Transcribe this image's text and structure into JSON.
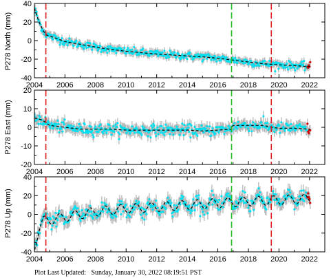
{
  "chart_data": [
    {
      "type": "scatter",
      "ylabel": "P278 North (mm)",
      "xlim": [
        2004,
        2023
      ],
      "ylim": [
        -40,
        40
      ],
      "xticks": [
        2004,
        2006,
        2008,
        2010,
        2012,
        2014,
        2016,
        2018,
        2020,
        2022
      ],
      "yticks": [
        -40,
        -20,
        0,
        20,
        40
      ],
      "events": [
        {
          "x": 2004.75,
          "color": "#e02020"
        },
        {
          "x": 2016.9,
          "color": "#22bb22"
        },
        {
          "x": 2019.5,
          "color": "#e02020"
        }
      ],
      "trend": {
        "x": [
          2004.0,
          2004.3,
          2004.6,
          2004.8,
          2005.0,
          2005.5,
          2006.0,
          2007.0,
          2008.0,
          2009.0,
          2010.0,
          2011.0,
          2012.0,
          2013.0,
          2014.0,
          2015.0,
          2016.0,
          2017.0,
          2018.0,
          2019.0,
          2020.0,
          2021.0,
          2022.0
        ],
        "y": [
          35,
          20,
          10,
          6,
          5,
          2,
          -1,
          -4,
          -7,
          -9.5,
          -11.5,
          -13,
          -14.5,
          -15.5,
          -16.5,
          -17.5,
          -19,
          -21,
          -23,
          -25,
          -26,
          -27,
          -28
        ]
      },
      "noise_mm": 3.5
    },
    {
      "type": "scatter",
      "ylabel": "P278 East (mm)",
      "xlim": [
        2004,
        2023
      ],
      "ylim": [
        -20,
        20
      ],
      "xticks": [
        2004,
        2006,
        2008,
        2010,
        2012,
        2014,
        2016,
        2018,
        2020,
        2022
      ],
      "yticks": [
        -20,
        -10,
        0,
        10,
        20
      ],
      "events": [
        {
          "x": 2004.75,
          "color": "#e02020"
        },
        {
          "x": 2016.9,
          "color": "#22bb22"
        },
        {
          "x": 2019.5,
          "color": "#e02020"
        }
      ],
      "trend": {
        "x": [
          2004.0,
          2004.5,
          2005.0,
          2006.0,
          2007.0,
          2008.0,
          2009.0,
          2010.0,
          2011.0,
          2012.0,
          2013.0,
          2014.0,
          2015.0,
          2016.0,
          2016.9,
          2017.0,
          2018.0,
          2019.0,
          2019.5,
          2020.0,
          2021.0,
          2022.0
        ],
        "y": [
          5,
          4,
          1,
          0,
          -1,
          -1,
          -1,
          -1.5,
          -1.5,
          -1.5,
          -1.5,
          -1.5,
          -2,
          -1.5,
          -1,
          1,
          1,
          1,
          0,
          -0.5,
          -0.5,
          -1
        ]
      },
      "noise_mm": 2.5
    },
    {
      "type": "scatter",
      "ylabel": "P278 Up (mm)",
      "xlim": [
        2004,
        2023
      ],
      "ylim": [
        -40,
        40
      ],
      "xticks": [
        2004,
        2006,
        2008,
        2010,
        2012,
        2014,
        2016,
        2018,
        2020,
        2022
      ],
      "yticks": [
        -40,
        -20,
        0,
        20,
        40
      ],
      "events": [
        {
          "x": 2004.75,
          "color": "#e02020"
        },
        {
          "x": 2016.9,
          "color": "#22bb22"
        },
        {
          "x": 2019.5,
          "color": "#e02020"
        }
      ],
      "trend": {
        "x": [
          2004.0,
          2004.3,
          2004.6,
          2005.0,
          2006.0,
          2008.0,
          2010.0,
          2012.0,
          2014.0,
          2016.0,
          2018.0,
          2020.0,
          2022.0
        ],
        "y": [
          -35,
          -15,
          -7,
          -6,
          -3,
          3,
          6,
          8,
          10,
          12,
          14,
          15,
          17
        ]
      },
      "seasonal_amplitude_mm": 5,
      "noise_mm": 6
    }
  ],
  "footer": {
    "label": "Plot Last Updated:",
    "timestamp": "Sunday, January 30, 2022 08:19:51 PST"
  }
}
